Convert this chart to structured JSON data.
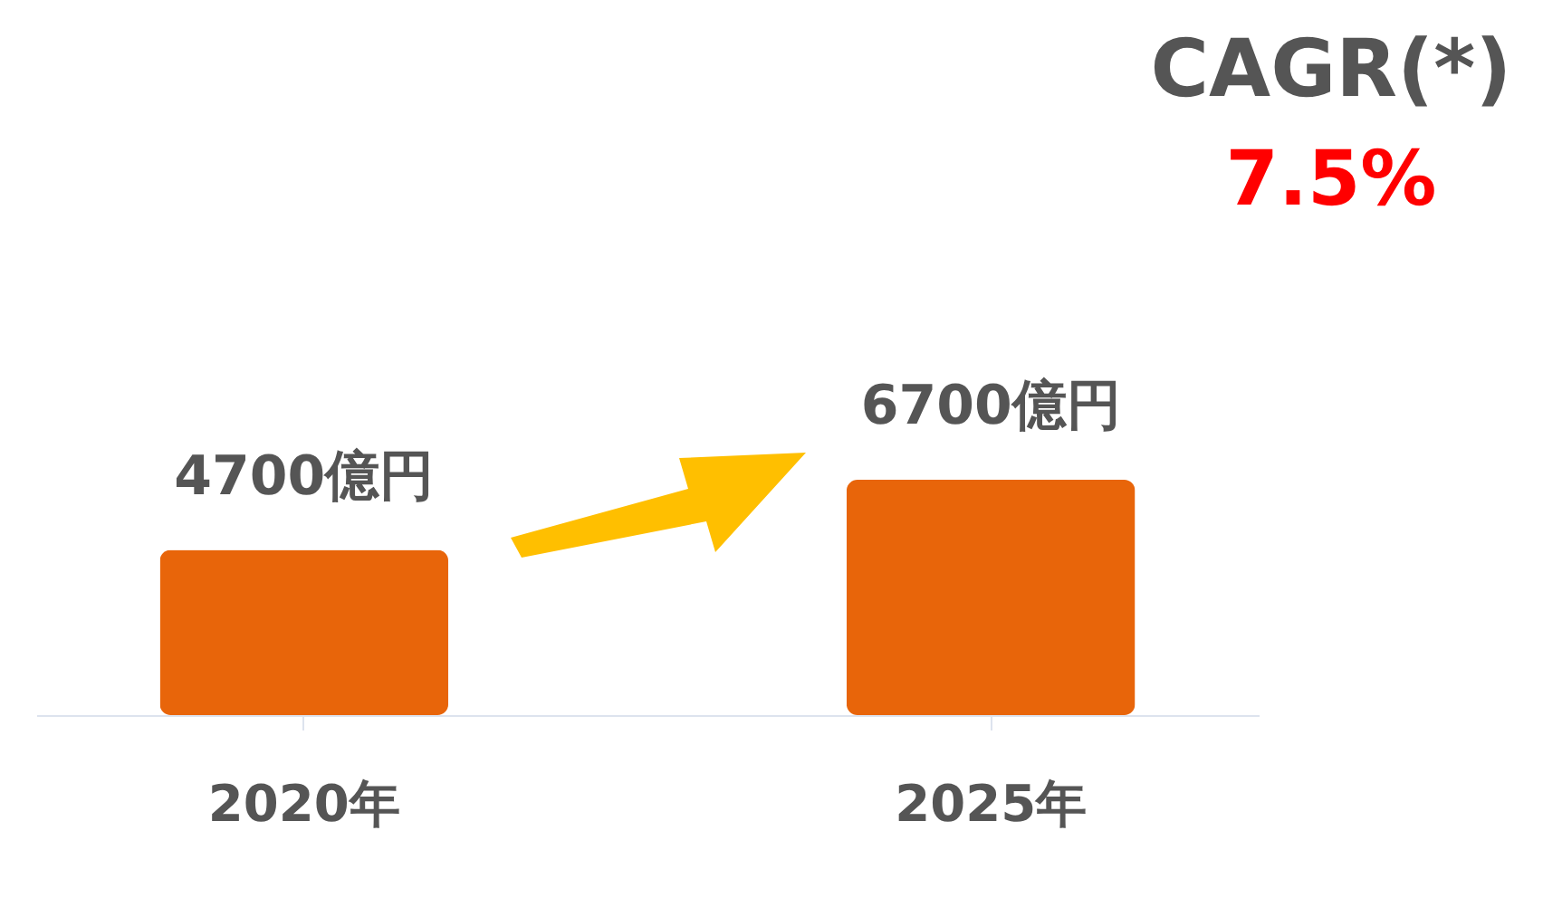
{
  "chart_data": {
    "type": "bar",
    "categories": [
      "2020年",
      "2025年"
    ],
    "values": [
      4700,
      6700
    ],
    "value_labels": [
      "4700億円",
      "6700億円"
    ],
    "color": "#e8650a",
    "tick_labels": "x",
    "annotations": [
      "CAGR(*)",
      "7.5%"
    ]
  }
}
